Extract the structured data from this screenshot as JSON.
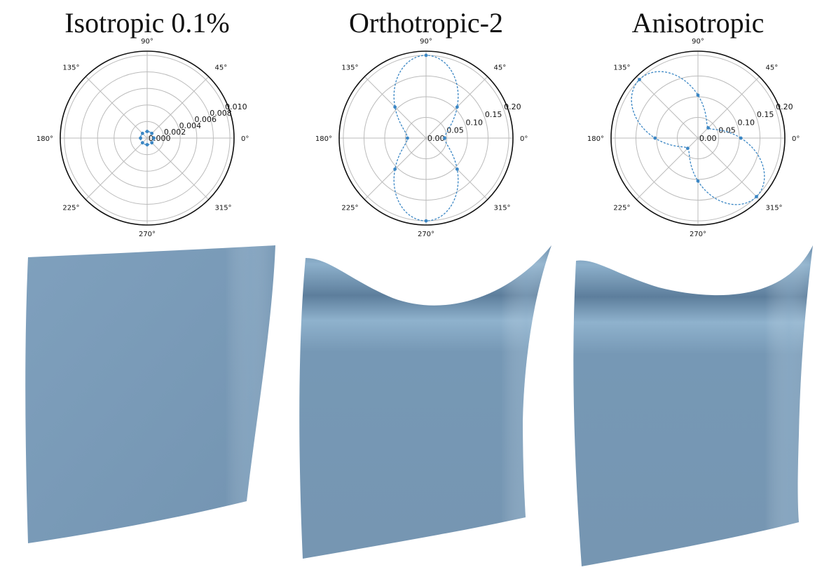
{
  "colors": {
    "curve": "#3a86c4",
    "grid": "#bbbbbb",
    "frame": "#111111",
    "cloth": "#7b9bb8",
    "cloth_dark": "#5f7f9c",
    "cloth_light": "#9bbad3"
  },
  "chart_data": [
    {
      "type": "polar",
      "title": "Isotropic 0.1%",
      "angle_ticks": [
        "0°",
        "45°",
        "90°",
        "135°",
        "180°",
        "225°",
        "270°",
        "315°"
      ],
      "radial_ticks": [
        "0.000",
        "0.002",
        "0.004",
        "0.006",
        "0.008",
        "0.010"
      ],
      "rmax": 0.0105,
      "grid": true,
      "series": [
        {
          "shape": "isotropic",
          "params": [
            0.0008
          ],
          "markers_deg": [
            0,
            45,
            90,
            135,
            180,
            225,
            270,
            315
          ]
        }
      ]
    },
    {
      "type": "polar",
      "title": "Orthotropic-2",
      "angle_ticks": [
        "0°",
        "45°",
        "90°",
        "135°",
        "180°",
        "225°",
        "270°",
        "315°"
      ],
      "radial_ticks": [
        "0.00",
        "0.05",
        "0.10",
        "0.15",
        "0.20"
      ],
      "rmax": 0.21,
      "grid": true,
      "series": [
        {
          "shape": "orthotropic",
          "params": [
            0.045,
            0.2,
            0.09
          ],
          "markers_deg": [
            0,
            45,
            90,
            135,
            180,
            225,
            270,
            315
          ]
        }
      ]
    },
    {
      "type": "polar",
      "title": "Anisotropic",
      "angle_ticks": [
        "0°",
        "45°",
        "90°",
        "135°",
        "180°",
        "225°",
        "270°",
        "315°"
      ],
      "radial_ticks": [
        "0.00",
        "0.05",
        "0.10",
        "0.15",
        "0.20"
      ],
      "rmax": 0.21,
      "grid": true,
      "series": [
        {
          "shape": "anisotropic",
          "params": [
            0.035,
            0.2,
            0.09,
            0.09
          ],
          "markers_deg": [
            0,
            45,
            90,
            135,
            180,
            225,
            270,
            315
          ]
        }
      ]
    }
  ]
}
